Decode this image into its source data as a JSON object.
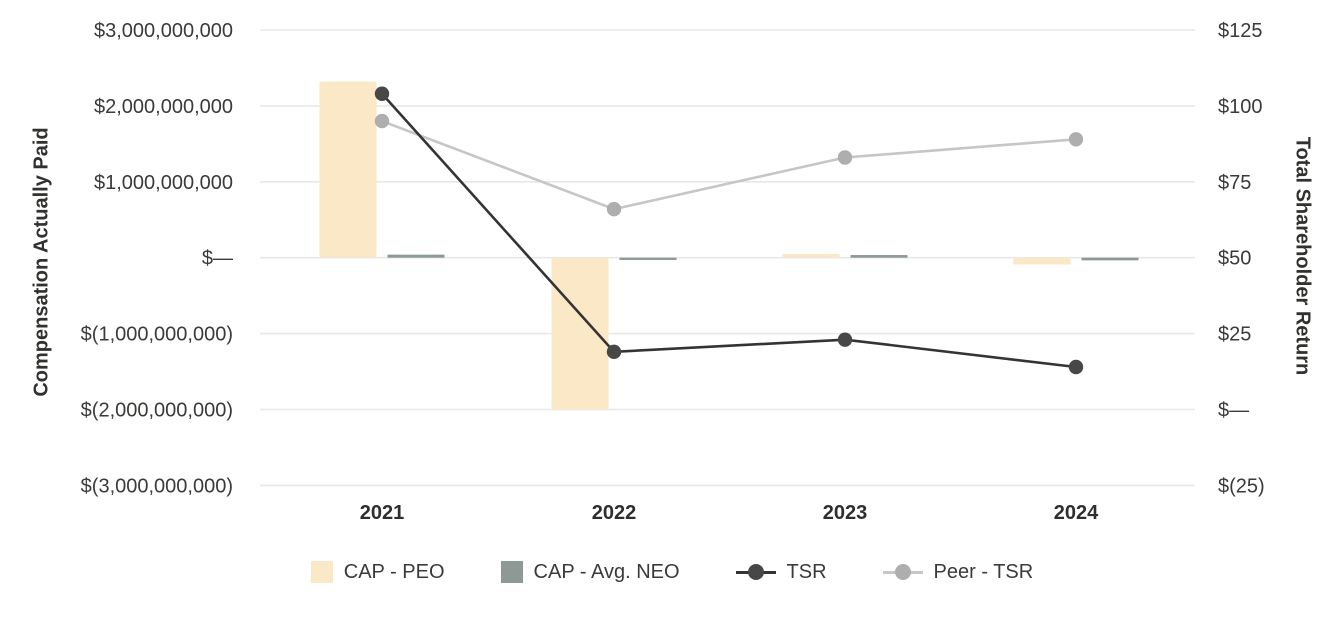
{
  "chart_data": {
    "type": "combo-bar-line",
    "categories": [
      "2021",
      "2022",
      "2023",
      "2024"
    ],
    "bar_series": [
      {
        "name": "CAP - PEO",
        "color": "#fae8c7",
        "axis": "left",
        "values": [
          2320000000,
          -2000000000,
          50000000,
          -90000000
        ]
      },
      {
        "name": "CAP - Avg. NEO",
        "color": "#8d9995",
        "axis": "left",
        "values": [
          40000000,
          -30000000,
          35000000,
          -35000000
        ]
      }
    ],
    "line_series": [
      {
        "name": "Peer - TSR",
        "line_color": "#c6c6c6",
        "dot_color": "#aeaeae",
        "axis": "right",
        "values": [
          95,
          66,
          83,
          89
        ]
      },
      {
        "name": "TSR",
        "line_color": "#343434",
        "dot_color": "#474747",
        "axis": "right",
        "values": [
          104,
          19,
          23,
          14
        ]
      }
    ],
    "left_axis": {
      "title": "Compensation Actually Paid",
      "max": 3000000000,
      "min": -3000000000,
      "step": 1000000000,
      "tick_labels": [
        "$3,000,000,000",
        "$2,000,000,000",
        "$1,000,000,000",
        "$—",
        "$(1,000,000,000)",
        "$(2,000,000,000)",
        "$(3,000,000,000)"
      ]
    },
    "right_axis": {
      "title": "Total Shareholder Return",
      "max": 125,
      "min": -25,
      "step": 25,
      "tick_labels": [
        "$125",
        "$100",
        "$75",
        "$50",
        "$25",
        "$—",
        "$(25)"
      ]
    },
    "grid": true,
    "gridline_color": "#e8e8e8",
    "legend_position": "bottom"
  },
  "legend": {
    "items": [
      {
        "label": "CAP - PEO",
        "swatch": "square",
        "color": "#fae8c7"
      },
      {
        "label": "CAP - Avg. NEO",
        "swatch": "square",
        "color": "#8d9995"
      },
      {
        "label": "TSR",
        "swatch": "line-dot",
        "color": "#343434",
        "dot_color": "#474747"
      },
      {
        "label": "Peer - TSR",
        "swatch": "line-dot",
        "color": "#c6c6c6",
        "dot_color": "#aeaeae"
      }
    ]
  }
}
